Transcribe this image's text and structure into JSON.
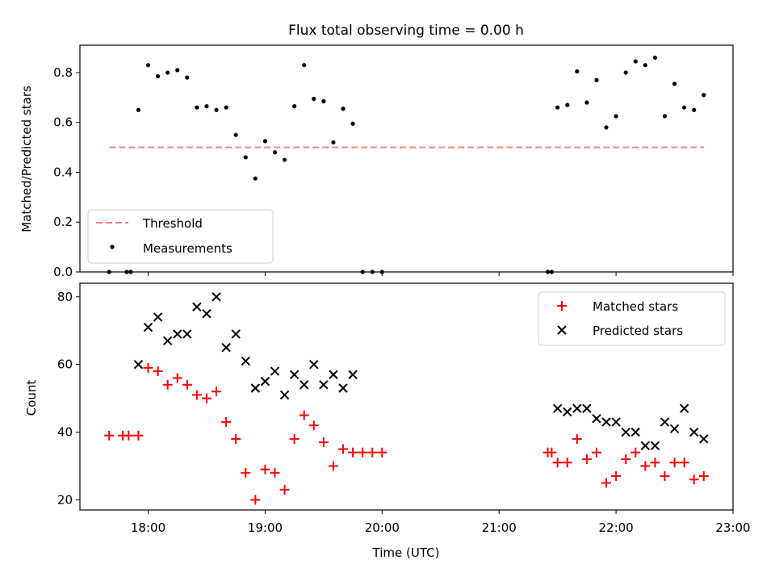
{
  "chart_data": [
    {
      "type": "scatter",
      "title": "Flux total observing time = 0.00 h",
      "xlabel": "",
      "ylabel": "Matched/Predicted stars",
      "xlim": [
        "17:25",
        "23:00"
      ],
      "ylim": [
        0,
        0.91
      ],
      "yticks": [
        0.0,
        0.2,
        0.4,
        0.6,
        0.8
      ],
      "ytick_labels": [
        "0.0",
        "0.2",
        "0.4",
        "0.6",
        "0.8"
      ],
      "grid": false,
      "legend": {
        "placement": "lower-left",
        "entries": [
          "Threshold",
          "Measurements"
        ]
      },
      "threshold": {
        "name": "Threshold",
        "value": 0.5,
        "x_range": [
          "17:40",
          "22:45"
        ],
        "color": "#ff7f7f",
        "style": "dashed"
      },
      "series": [
        {
          "name": "Measurements",
          "color": "#000000",
          "marker": "dot",
          "points": [
            [
              "17:40",
              0.0
            ],
            [
              "17:49",
              0.0
            ],
            [
              "17:51",
              0.0
            ],
            [
              "17:55",
              0.65
            ],
            [
              "18:00",
              0.83
            ],
            [
              "18:05",
              0.785
            ],
            [
              "18:10",
              0.8
            ],
            [
              "18:15",
              0.81
            ],
            [
              "18:20",
              0.78
            ],
            [
              "18:25",
              0.66
            ],
            [
              "18:30",
              0.665
            ],
            [
              "18:35",
              0.65
            ],
            [
              "18:40",
              0.66
            ],
            [
              "18:45",
              0.55
            ],
            [
              "18:50",
              0.46
            ],
            [
              "18:55",
              0.375
            ],
            [
              "19:00",
              0.525
            ],
            [
              "19:05",
              0.48
            ],
            [
              "19:10",
              0.45
            ],
            [
              "19:15",
              0.665
            ],
            [
              "19:20",
              0.83
            ],
            [
              "19:25",
              0.695
            ],
            [
              "19:30",
              0.685
            ],
            [
              "19:35",
              0.52
            ],
            [
              "19:40",
              0.655
            ],
            [
              "19:45",
              0.595
            ],
            [
              "19:50",
              0.0
            ],
            [
              "19:55",
              0.0
            ],
            [
              "20:00",
              0.0
            ],
            [
              "21:25",
              0.0
            ],
            [
              "21:27",
              0.0
            ],
            [
              "21:30",
              0.66
            ],
            [
              "21:35",
              0.67
            ],
            [
              "21:40",
              0.805
            ],
            [
              "21:45",
              0.68
            ],
            [
              "21:50",
              0.77
            ],
            [
              "21:55",
              0.58
            ],
            [
              "22:00",
              0.625
            ],
            [
              "22:05",
              0.8
            ],
            [
              "22:10",
              0.845
            ],
            [
              "22:15",
              0.83
            ],
            [
              "22:20",
              0.86
            ],
            [
              "22:25",
              0.625
            ],
            [
              "22:30",
              0.755
            ],
            [
              "22:35",
              0.66
            ],
            [
              "22:40",
              0.65
            ],
            [
              "22:45",
              0.71
            ]
          ]
        }
      ]
    },
    {
      "type": "scatter",
      "title": "",
      "xlabel": "Time (UTC)",
      "ylabel": "Count",
      "xlim": [
        "17:25",
        "23:00"
      ],
      "ylim": [
        17,
        84
      ],
      "xticks": [
        "18:00",
        "19:00",
        "20:00",
        "21:00",
        "22:00",
        "23:00"
      ],
      "yticks": [
        20,
        40,
        60,
        80
      ],
      "ytick_labels": [
        "20",
        "40",
        "60",
        "80"
      ],
      "grid": false,
      "legend": {
        "placement": "upper-right",
        "entries": [
          "Matched stars",
          "Predicted stars"
        ]
      },
      "series": [
        {
          "name": "Matched stars",
          "color": "#ff0000",
          "marker": "plus",
          "points": [
            [
              "17:40",
              39
            ],
            [
              "17:47",
              39
            ],
            [
              "17:50",
              39
            ],
            [
              "17:55",
              39
            ],
            [
              "18:00",
              59
            ],
            [
              "18:05",
              58
            ],
            [
              "18:10",
              54
            ],
            [
              "18:15",
              56
            ],
            [
              "18:20",
              54
            ],
            [
              "18:25",
              51
            ],
            [
              "18:30",
              50
            ],
            [
              "18:35",
              52
            ],
            [
              "18:40",
              43
            ],
            [
              "18:45",
              38
            ],
            [
              "18:50",
              28
            ],
            [
              "18:55",
              20
            ],
            [
              "19:00",
              29
            ],
            [
              "19:05",
              28
            ],
            [
              "19:10",
              23
            ],
            [
              "19:15",
              38
            ],
            [
              "19:20",
              45
            ],
            [
              "19:25",
              42
            ],
            [
              "19:30",
              37
            ],
            [
              "19:35",
              30
            ],
            [
              "19:40",
              35
            ],
            [
              "19:45",
              34
            ],
            [
              "19:50",
              34
            ],
            [
              "19:55",
              34
            ],
            [
              "20:00",
              34
            ],
            [
              "21:25",
              34
            ],
            [
              "21:27",
              34
            ],
            [
              "21:30",
              31
            ],
            [
              "21:35",
              31
            ],
            [
              "21:40",
              38
            ],
            [
              "21:45",
              32
            ],
            [
              "21:50",
              34
            ],
            [
              "21:55",
              25
            ],
            [
              "22:00",
              27
            ],
            [
              "22:05",
              32
            ],
            [
              "22:10",
              34
            ],
            [
              "22:15",
              30
            ],
            [
              "22:20",
              31
            ],
            [
              "22:25",
              27
            ],
            [
              "22:30",
              31
            ],
            [
              "22:35",
              31
            ],
            [
              "22:40",
              26
            ],
            [
              "22:45",
              27
            ]
          ]
        },
        {
          "name": "Predicted stars",
          "color": "#000000",
          "marker": "x",
          "points": [
            [
              "17:55",
              60
            ],
            [
              "18:00",
              71
            ],
            [
              "18:05",
              74
            ],
            [
              "18:10",
              67
            ],
            [
              "18:15",
              69
            ],
            [
              "18:20",
              69
            ],
            [
              "18:25",
              77
            ],
            [
              "18:30",
              75
            ],
            [
              "18:35",
              80
            ],
            [
              "18:40",
              65
            ],
            [
              "18:45",
              69
            ],
            [
              "18:50",
              61
            ],
            [
              "18:55",
              53
            ],
            [
              "19:00",
              55
            ],
            [
              "19:05",
              58
            ],
            [
              "19:10",
              51
            ],
            [
              "19:15",
              57
            ],
            [
              "19:20",
              54
            ],
            [
              "19:25",
              60
            ],
            [
              "19:30",
              54
            ],
            [
              "19:35",
              57
            ],
            [
              "19:40",
              53
            ],
            [
              "19:45",
              57
            ],
            [
              "21:30",
              47
            ],
            [
              "21:35",
              46
            ],
            [
              "21:40",
              47
            ],
            [
              "21:45",
              47
            ],
            [
              "21:50",
              44
            ],
            [
              "21:55",
              43
            ],
            [
              "22:00",
              43
            ],
            [
              "22:05",
              40
            ],
            [
              "22:10",
              40
            ],
            [
              "22:15",
              36
            ],
            [
              "22:20",
              36
            ],
            [
              "22:25",
              43
            ],
            [
              "22:30",
              41
            ],
            [
              "22:35",
              47
            ],
            [
              "22:40",
              40
            ],
            [
              "22:45",
              38
            ]
          ]
        }
      ]
    }
  ]
}
